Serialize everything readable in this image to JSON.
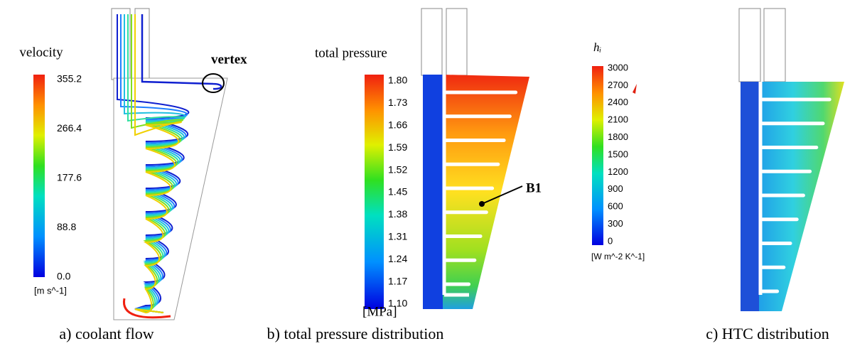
{
  "panels": [
    {
      "caption": "a) coolant flow",
      "annotation": "vertex",
      "colorbar": {
        "title": "velocity",
        "ticks": [
          "355.2",
          "266.4",
          "177.6",
          "88.8",
          "0.0"
        ],
        "unit": "[m s^-1]"
      }
    },
    {
      "caption": "b) total pressure distribution",
      "annotation": "B1",
      "colorbar": {
        "title": "total pressure",
        "ticks": [
          "1.80",
          "1.73",
          "1.66",
          "1.59",
          "1.52",
          "1.45",
          "1.38",
          "1.31",
          "1.24",
          "1.17",
          "1.10"
        ],
        "unit": "[MPa]"
      }
    },
    {
      "caption": "c) HTC distribution",
      "colorbar": {
        "title": "hᵢ",
        "ticks": [
          "3000",
          "2700",
          "2400",
          "2100",
          "1800",
          "1500",
          "1200",
          "900",
          "600",
          "300",
          "0"
        ],
        "unit": "[W m^-2 K^-1]"
      }
    }
  ]
}
